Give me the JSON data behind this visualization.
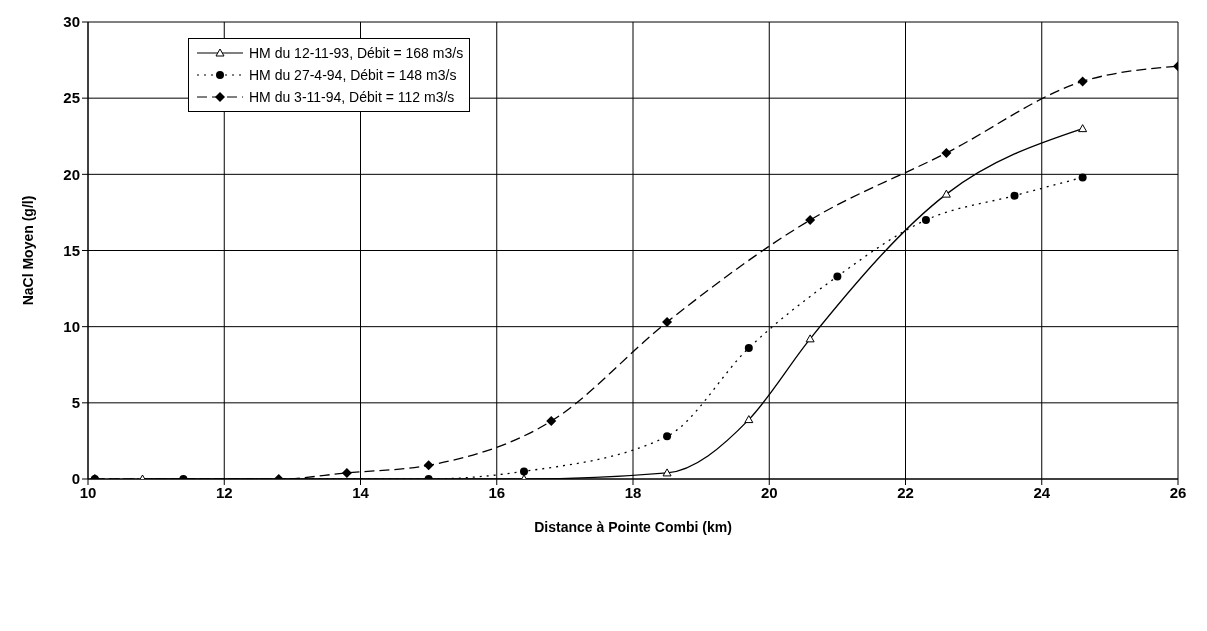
{
  "chart_data": {
    "type": "line",
    "xlabel": "Distance à Pointe Combi (km)",
    "ylabel": "NaCl Moyen (g/l)",
    "xlim": [
      10,
      26
    ],
    "xticks": [
      10,
      12,
      14,
      16,
      18,
      20,
      22,
      24,
      26
    ],
    "ylim": [
      0,
      30
    ],
    "yticks": [
      0,
      5,
      10,
      15,
      20,
      25,
      30
    ],
    "grid": true,
    "legend": "top left",
    "series": [
      {
        "name": "HM du 12-11-93, Débit = 168 m3/s",
        "color": "#000000",
        "marker": "triangle",
        "line_style": "solid",
        "x": [
          10.8,
          12.8,
          16.4,
          18.5,
          19.7,
          20.6,
          22.6,
          24.6
        ],
        "values": [
          0,
          0,
          0,
          0.4,
          3.9,
          9.2,
          18.7,
          23
        ]
      },
      {
        "name": "HM du 27-4-94, Débit = 148 m3/s",
        "color": "#000000",
        "marker": "circle",
        "line_style": "dotted",
        "x": [
          10.1,
          11.4,
          15,
          16.4,
          18.5,
          19.7,
          21,
          22.3,
          23.6,
          24.6
        ],
        "values": [
          0,
          0,
          0,
          0.5,
          2.8,
          8.6,
          13.3,
          17,
          18.6,
          19.8
        ]
      },
      {
        "name": "HM du 3-11-94, Débit = 112 m3/s",
        "color": "#000000",
        "marker": "diamond",
        "line_style": "dashed",
        "x": [
          10.1,
          12.8,
          13.8,
          15,
          16.8,
          18.5,
          20.6,
          22.6,
          24.6,
          26
        ],
        "values": [
          0,
          0,
          0.4,
          0.9,
          3.8,
          10.3,
          17,
          21.4,
          26.1,
          27.1
        ]
      }
    ]
  }
}
